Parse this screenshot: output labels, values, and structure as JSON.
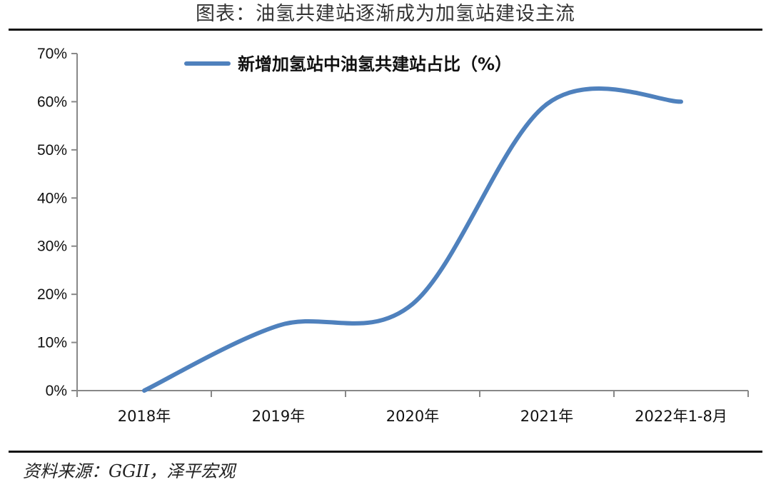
{
  "title": "图表：油氢共建站逐渐成为加氢站建设主流",
  "source": "资料来源：GGII，泽平宏观",
  "chart_data": {
    "type": "line",
    "categories": [
      "2018年",
      "2019年",
      "2020年",
      "2021年",
      "2022年1-8月"
    ],
    "series": [
      {
        "name": "新增加氢站中油氢共建站占比（%）",
        "values": [
          0,
          13.5,
          18,
          59.5,
          60
        ],
        "color": "#4f81bd",
        "smooth": true
      }
    ],
    "y_ticks": [
      "0%",
      "10%",
      "20%",
      "30%",
      "40%",
      "50%",
      "60%",
      "70%"
    ],
    "ylim": [
      0,
      70
    ],
    "y_format": "percent",
    "grid": false,
    "legend": "top-center"
  }
}
